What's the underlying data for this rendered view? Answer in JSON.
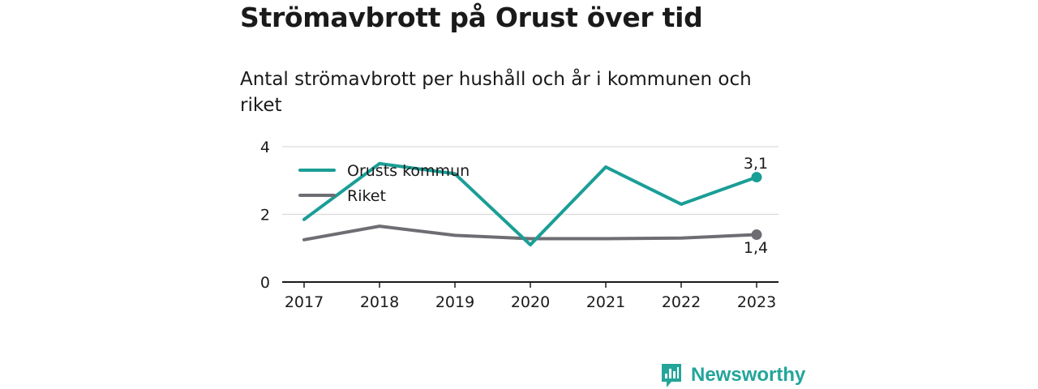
{
  "brand": {
    "name": "Newsworthy",
    "color": "#23a59a"
  },
  "chart_data": {
    "type": "line",
    "title": "Strömavbrott på Orust över tid",
    "subtitle": "Antal strömavbrott per hushåll och år i kommunen och riket",
    "categories": [
      "2017",
      "2018",
      "2019",
      "2020",
      "2021",
      "2022",
      "2023"
    ],
    "series": [
      {
        "name": "Orusts kommun",
        "color": "#1a9e96",
        "values": [
          1.85,
          3.5,
          3.2,
          1.1,
          3.4,
          2.3,
          3.1
        ],
        "end_label": "3,1"
      },
      {
        "name": "Riket",
        "color": "#6e6d73",
        "values": [
          1.25,
          1.65,
          1.38,
          1.28,
          1.28,
          1.3,
          1.4
        ],
        "end_label": "1,4"
      }
    ],
    "yticks": [
      "0",
      "2",
      "4"
    ],
    "ylim": [
      0,
      4
    ],
    "grid": true,
    "legend": "top-left"
  }
}
